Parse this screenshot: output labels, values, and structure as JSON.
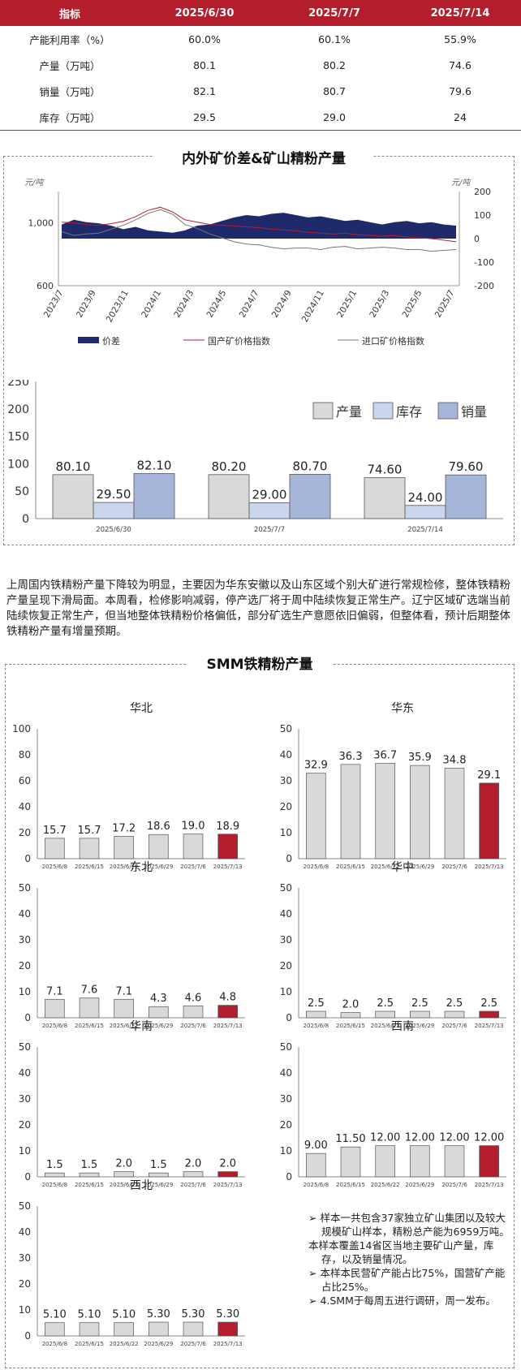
{
  "table": {
    "headers": [
      "指标",
      "2025/6/30",
      "2025/7/7",
      "2025/7/14"
    ],
    "rows": [
      [
        "产能利用率（%）",
        "60.0%",
        "60.1%",
        "55.9%"
      ],
      [
        "产量（万吨）",
        "80.1",
        "80.2",
        "74.6"
      ],
      [
        "销量（万吨）",
        "82.1",
        "80.7",
        "79.6"
      ],
      [
        "库存（万吨）",
        "29.5",
        "29.0",
        "24"
      ]
    ]
  },
  "panel1": {
    "title": "内外矿价差&矿山精粉产量"
  },
  "paragraph": "上周国内铁精粉产量下降较为明显，主要因为华东安徽以及山东区域个别大矿进行常规检修，整体铁精粉产量呈现下滑局面。本周看，检修影响减弱，停产选厂将于周中陆续恢复正常生产。辽宁区域矿选端当前陆续恢复正常生产，但当地整体铁精粉价格偏低，部分矿选生产意愿依旧偏弱，但整体看，预计后期整体铁精粉产量有增量预期。",
  "panel2": {
    "title": "SMM铁精粉产量"
  },
  "notes": [
    "➢ 样本一共包含37家独立矿山集团以及较大规模矿山样本，精粉总产能为6959万吨。",
    "本样本覆盖14省区当地主要矿山产量，库存，以及销量情况。",
    "➢ 本样本民营矿产能占比75%，国营矿产能占比25%。",
    "➢ 4.SMM于每周五进行调研，周一发布。"
  ],
  "colors": {
    "red": "#b41e2c",
    "navy": "#1f2a6b",
    "gray_bar": "#d9d9d9",
    "light_blue": "#c9d6ee",
    "mid_blue": "#a5b6da"
  },
  "chart_data": [
    {
      "type": "area",
      "title": "内外矿价差&矿山精粉产量",
      "y_left_unit": "元/吨",
      "y_right_unit": "元/吨",
      "y_left_ticks": [
        "1,000",
        "600"
      ],
      "y_left_range": [
        600,
        1200
      ],
      "y_right_ticks": [
        200,
        100,
        0,
        -100,
        -200
      ],
      "y_right_range": [
        -200,
        200
      ],
      "x_ticks": [
        "2023/7",
        "2023/9",
        "2023/11",
        "2024/1",
        "2024/3",
        "2024/5",
        "2024/7",
        "2024/9",
        "2024/11",
        "2025/1",
        "2025/3",
        "2025/5",
        "2025/7"
      ],
      "series": [
        {
          "name": "价差",
          "axis": "right",
          "kind": "area",
          "values": [
            60,
            80,
            70,
            65,
            55,
            40,
            50,
            35,
            30,
            25,
            35,
            55,
            60,
            75,
            90,
            100,
            95,
            105,
            110,
            100,
            90,
            95,
            85,
            75,
            80,
            70,
            60,
            70,
            75,
            65,
            70,
            60,
            55
          ]
        },
        {
          "name": "国产矿价格指数",
          "axis": "left",
          "kind": "line",
          "values": [
            1005,
            1000,
            990,
            985,
            995,
            1010,
            1040,
            1080,
            1100,
            1070,
            1020,
            1005,
            990,
            985,
            980,
            975,
            970,
            960,
            955,
            950,
            940,
            935,
            930,
            935,
            925,
            920,
            915,
            920,
            910,
            905,
            900,
            890,
            880
          ]
        },
        {
          "name": "进口矿价格指数",
          "axis": "left",
          "kind": "line",
          "values": [
            945,
            920,
            930,
            935,
            960,
            985,
            1020,
            1060,
            1085,
            1055,
            990,
            965,
            930,
            905,
            880,
            865,
            860,
            845,
            835,
            840,
            840,
            830,
            845,
            850,
            835,
            840,
            845,
            840,
            830,
            830,
            820,
            825,
            830
          ]
        }
      ],
      "legend": "bottom"
    },
    {
      "type": "bar",
      "categories": [
        "2025/6/30",
        "2025/7/7",
        "2025/7/14"
      ],
      "ylim": [
        0,
        250
      ],
      "y_ticks": [
        0,
        50,
        100,
        150,
        200,
        250
      ],
      "series": [
        {
          "name": "产量",
          "values": [
            80.1,
            80.2,
            74.6
          ],
          "labels": [
            "80.10",
            "80.20",
            "74.60"
          ]
        },
        {
          "name": "库存",
          "values": [
            29.5,
            29.0,
            24.0
          ],
          "labels": [
            "29.50",
            "29.00",
            "24.00"
          ]
        },
        {
          "name": "销量",
          "values": [
            82.1,
            80.7,
            79.6
          ],
          "labels": [
            "82.10",
            "80.70",
            "79.60"
          ]
        }
      ],
      "legend": "top-right"
    },
    {
      "type": "bar",
      "title": "华北",
      "ylim": [
        0,
        100
      ],
      "y_ticks": [
        0,
        20,
        40,
        60,
        80,
        100
      ],
      "categories": [
        "2025/6/8",
        "2025/6/15",
        "2025/6/22",
        "2025/6/29",
        "2025/7/6",
        "2025/7/13"
      ],
      "values": [
        15.7,
        15.7,
        17.2,
        18.6,
        19.0,
        18.9
      ],
      "labels": [
        "15.7",
        "15.7",
        "17.2",
        "18.6",
        "19.0",
        "18.9"
      ]
    },
    {
      "type": "bar",
      "title": "华东",
      "ylim": [
        0,
        50
      ],
      "y_ticks": [
        0,
        10,
        20,
        30,
        40,
        50
      ],
      "categories": [
        "2025/6/8",
        "2025/6/15",
        "2025/6/22",
        "2025/6/29",
        "2025/7/6",
        "2025/7/13"
      ],
      "values": [
        32.9,
        36.3,
        36.7,
        35.9,
        34.8,
        29.1
      ],
      "labels": [
        "32.9",
        "36.3",
        "36.7",
        "35.9",
        "34.8",
        "29.1"
      ]
    },
    {
      "type": "bar",
      "title": "东北",
      "ylim": [
        0,
        50
      ],
      "y_ticks": [
        0,
        10,
        20,
        30,
        40,
        50
      ],
      "categories": [
        "2025/6/8",
        "2025/6/15",
        "2025/6/22",
        "2025/6/29",
        "2025/7/6",
        "2025/7/13"
      ],
      "values": [
        7.1,
        7.6,
        7.1,
        4.3,
        4.6,
        4.8
      ],
      "labels": [
        "7.1",
        "7.6",
        "7.1",
        "4.3",
        "4.6",
        "4.8"
      ]
    },
    {
      "type": "bar",
      "title": "华中",
      "ylim": [
        0,
        50
      ],
      "y_ticks": [
        0,
        10,
        20,
        30,
        40,
        50
      ],
      "categories": [
        "2025/6/8",
        "2025/6/15",
        "2025/6/22",
        "2025/6/29",
        "2025/7/6",
        "2025/7/13"
      ],
      "values": [
        2.5,
        2.0,
        2.5,
        2.5,
        2.5,
        2.5
      ],
      "labels": [
        "2.5",
        "2.0",
        "2.5",
        "2.5",
        "2.5",
        "2.5"
      ]
    },
    {
      "type": "bar",
      "title": "华南",
      "ylim": [
        0,
        50
      ],
      "y_ticks": [
        0,
        10,
        20,
        30,
        40,
        50
      ],
      "categories": [
        "2025/6/8",
        "2025/6/15",
        "2025/6/22",
        "2025/6/29",
        "2025/7/6",
        "2025/7/13"
      ],
      "values": [
        1.5,
        1.5,
        2.0,
        1.5,
        2.0,
        2.0
      ],
      "labels": [
        "1.5",
        "1.5",
        "2.0",
        "1.5",
        "2.0",
        "2.0"
      ]
    },
    {
      "type": "bar",
      "title": "西南",
      "ylim": [
        0,
        50
      ],
      "y_ticks": [
        0,
        10,
        20,
        30,
        40,
        50
      ],
      "categories": [
        "2025/6/8",
        "2025/6/15",
        "2025/6/22",
        "2025/6/29",
        "2025/7/6",
        "2025/7/13"
      ],
      "values": [
        9.0,
        11.5,
        12.0,
        12.0,
        12.0,
        12.0
      ],
      "labels": [
        "9.00",
        "11.50",
        "12.00",
        "12.00",
        "12.00",
        "12.00"
      ]
    },
    {
      "type": "bar",
      "title": "西北",
      "ylim": [
        0,
        50
      ],
      "y_ticks": [
        0,
        10,
        20,
        30,
        40,
        50
      ],
      "categories": [
        "2025/6/8",
        "2025/6/15",
        "2025/6/22",
        "2025/6/29",
        "2025/7/6",
        "2025/7/13"
      ],
      "values": [
        5.1,
        5.1,
        5.1,
        5.3,
        5.3,
        5.3
      ],
      "labels": [
        "5.10",
        "5.10",
        "5.10",
        "5.30",
        "5.30",
        "5.30"
      ]
    }
  ]
}
